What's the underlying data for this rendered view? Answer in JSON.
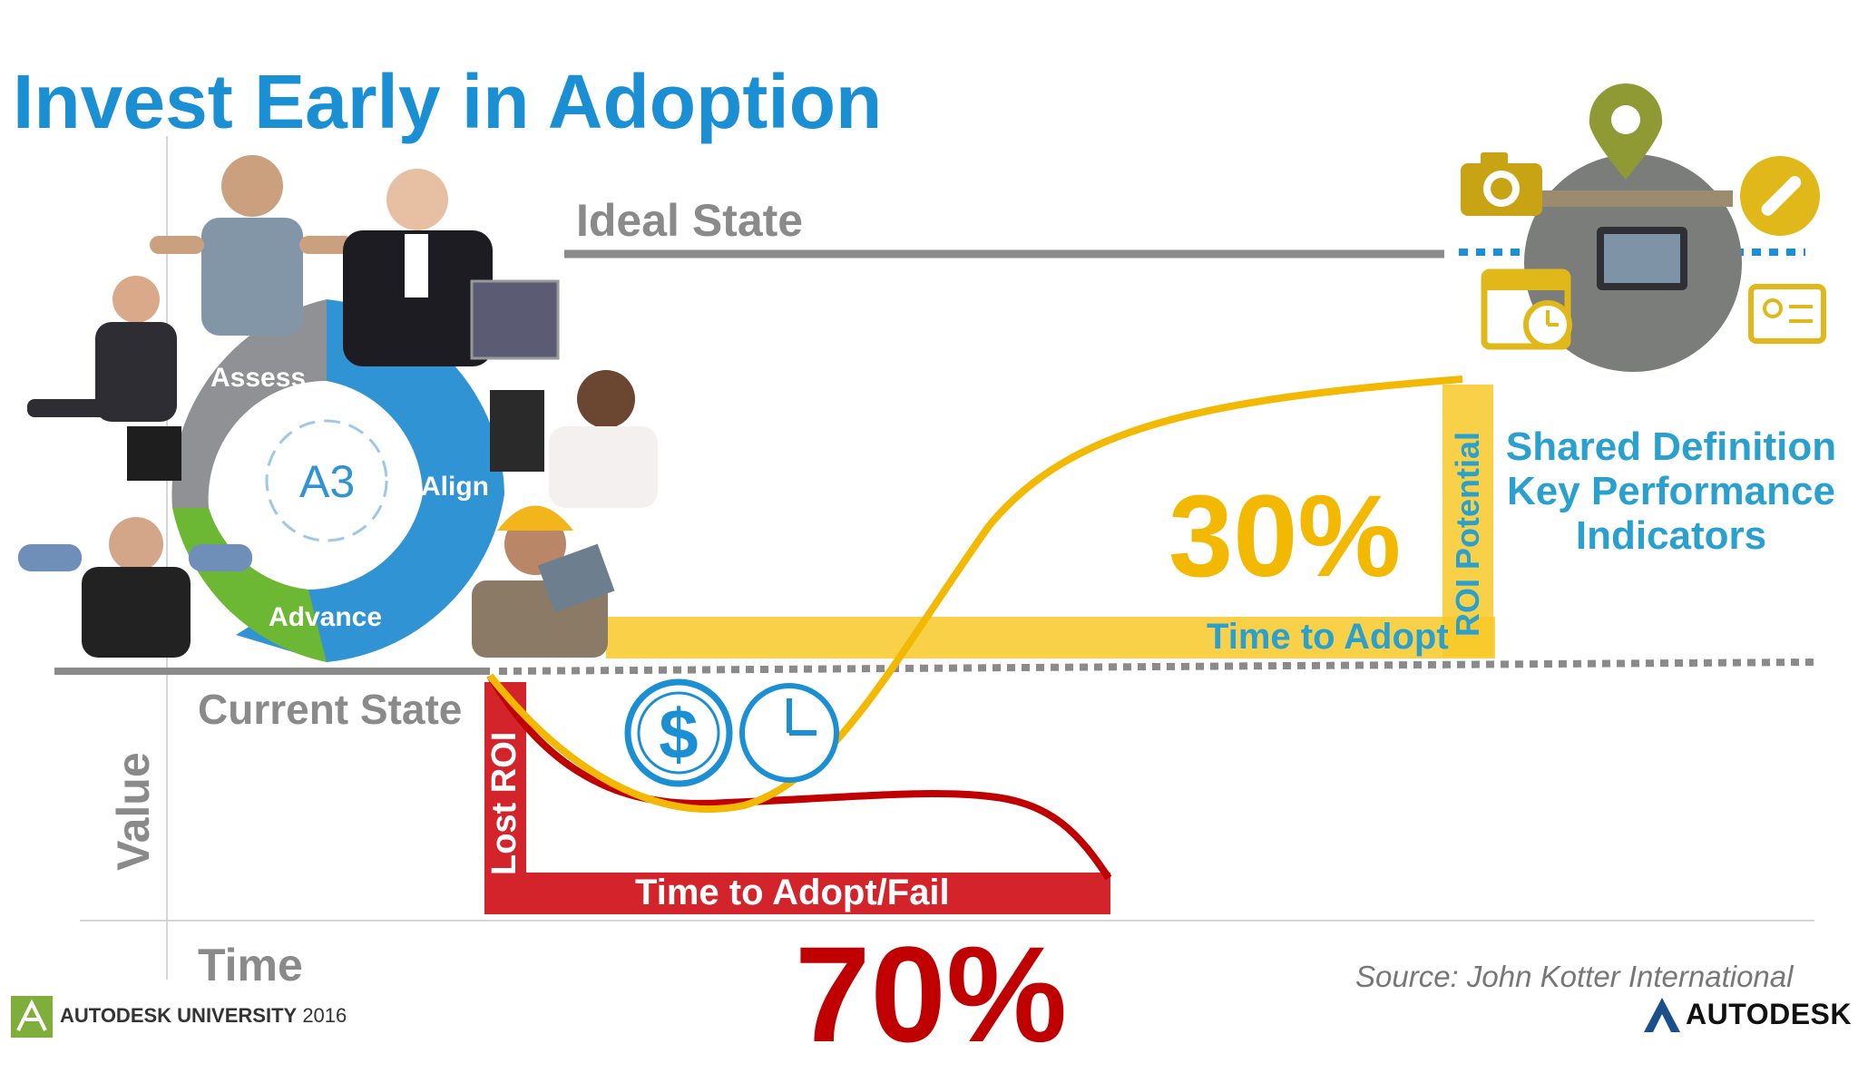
{
  "slide": {
    "title": "Invest Early in Adoption",
    "ideal_state": "Ideal State",
    "current_state": "Current State",
    "value_axis": "Value",
    "time_axis": "Time",
    "percent_success": "30%",
    "percent_fail": "70%",
    "time_to_adopt": "Time to Adopt",
    "time_to_adopt_fail": "Time to Adopt/Fail",
    "lost_roi": "Lost ROI",
    "roi_potential": "ROI Potential",
    "kpi_lines": [
      "Shared Definition",
      "Key Performance",
      "Indicators"
    ],
    "source": "Source: John Kotter International"
  },
  "cycle": {
    "center": "A3",
    "steps": [
      "Assess",
      "Align",
      "Advance"
    ]
  },
  "footer": {
    "event": "AUTODESK UNIVERSITY",
    "year": "2016",
    "brand": "AUTODESK"
  },
  "icons": [
    "camera-icon",
    "map-pin-icon",
    "link-icon",
    "calendar-icon",
    "contact-card-icon",
    "dollar-icon",
    "clock-icon"
  ],
  "colors": {
    "title_blue": "#1b8fd3",
    "success_yellow": "#f3b800",
    "fail_red": "#c00000",
    "label_blue": "#2aa0cf",
    "line_gray": "#8a8a8a"
  }
}
